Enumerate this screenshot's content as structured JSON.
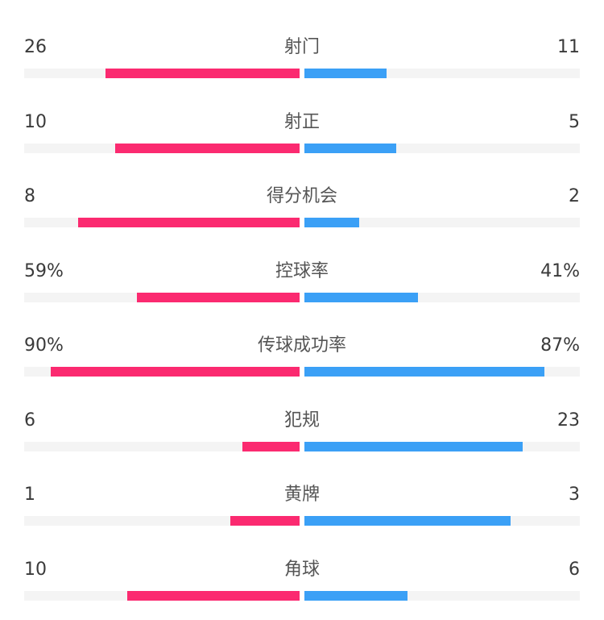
{
  "colors": {
    "home": "#fb2a70",
    "away": "#3ba0f6",
    "track": "#f4f4f4"
  },
  "stats": [
    {
      "label": "射门",
      "home": "26",
      "away": "11",
      "home_fill": 0.705,
      "away_fill": 0.298
    },
    {
      "label": "射正",
      "home": "10",
      "away": "5",
      "home_fill": 0.67,
      "away_fill": 0.333
    },
    {
      "label": "得分机会",
      "home": "8",
      "away": "2",
      "home_fill": 0.803,
      "away_fill": 0.199
    },
    {
      "label": "控球率",
      "home": "59%",
      "away": "41%",
      "home_fill": 0.591,
      "away_fill": 0.412
    },
    {
      "label": "传球成功率",
      "home": "90%",
      "away": "87%",
      "home_fill": 0.903,
      "away_fill": 0.871
    },
    {
      "label": "犯规",
      "home": "6",
      "away": "23",
      "home_fill": 0.208,
      "away_fill": 0.792
    },
    {
      "label": "黄牌",
      "home": "1",
      "away": "3",
      "home_fill": 0.251,
      "away_fill": 0.749
    },
    {
      "label": "角球",
      "home": "10",
      "away": "6",
      "home_fill": 0.626,
      "away_fill": 0.374
    }
  ]
}
